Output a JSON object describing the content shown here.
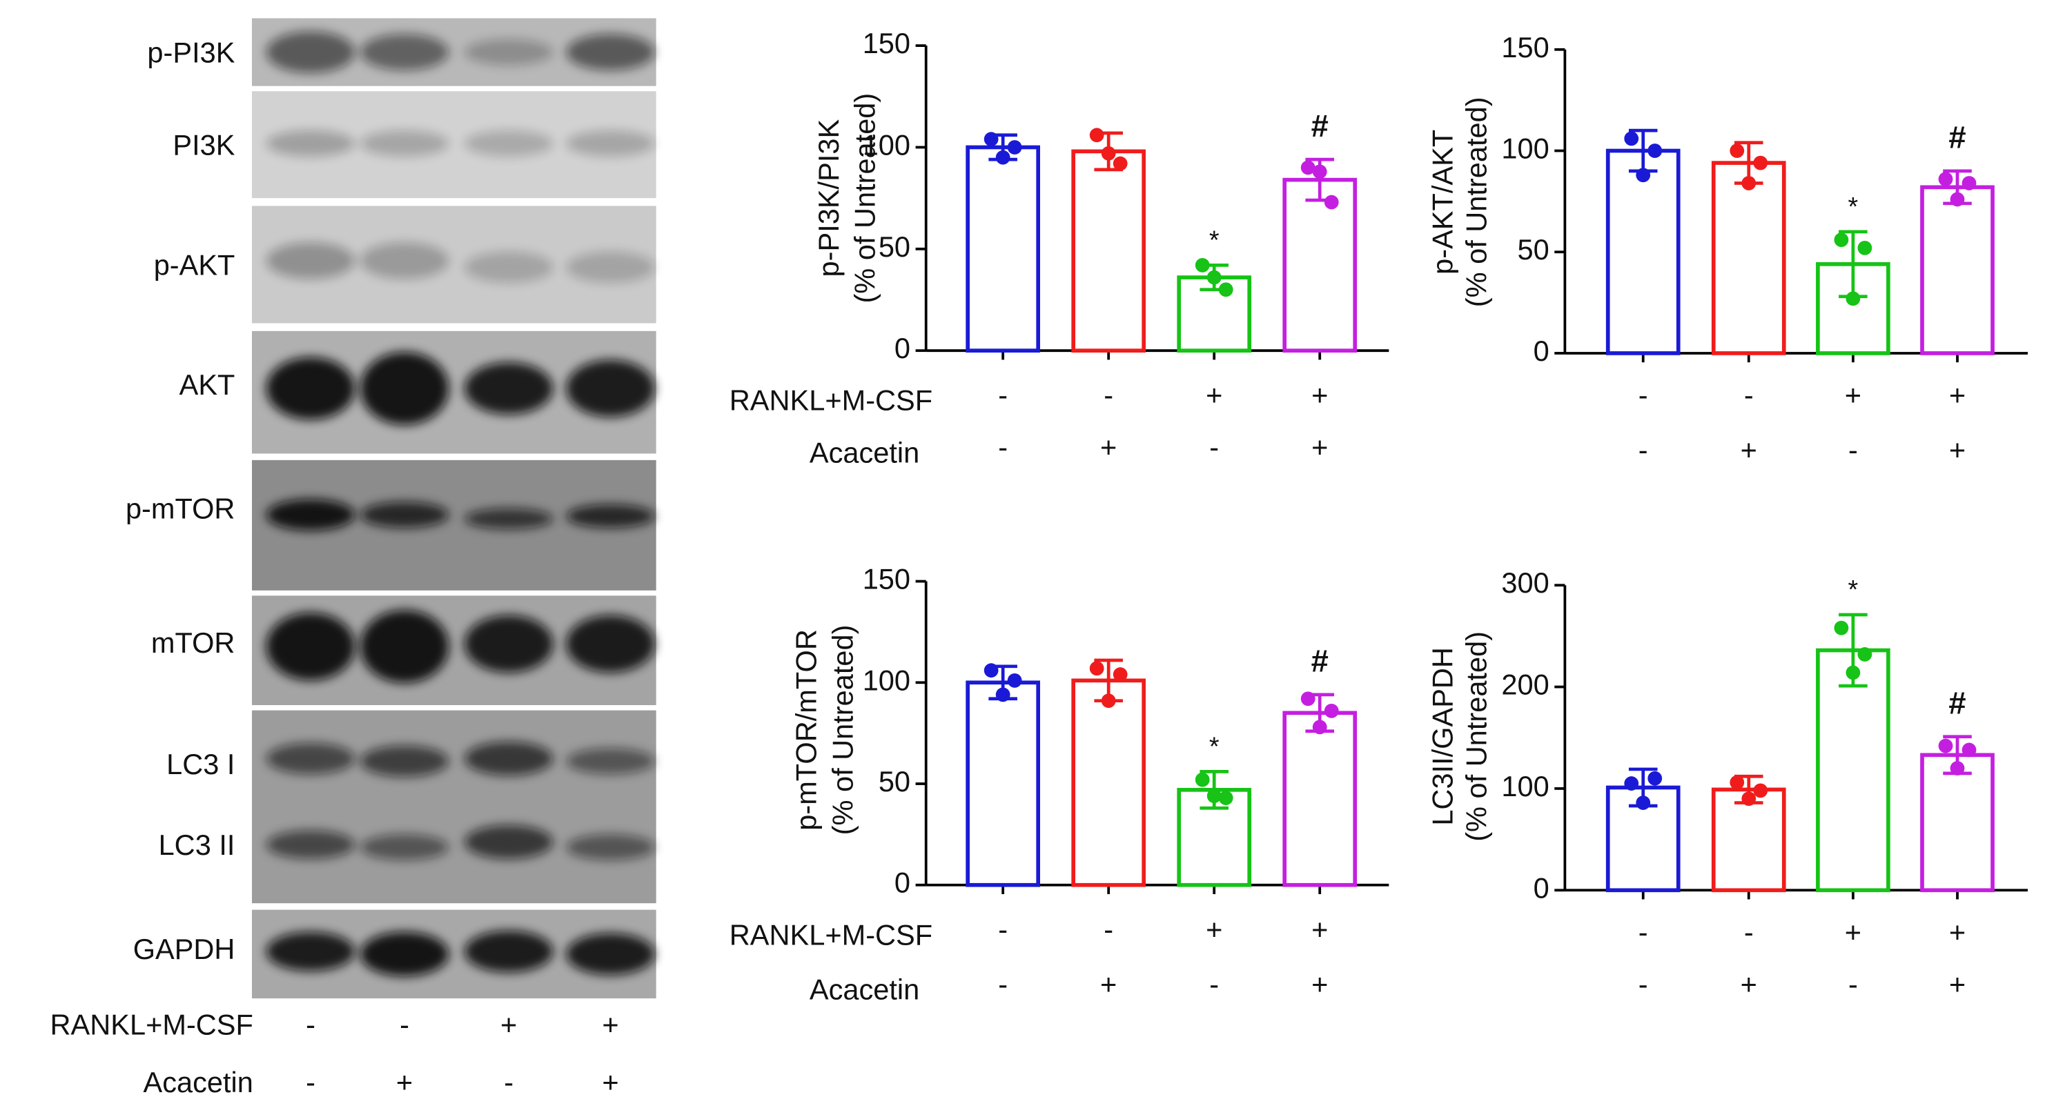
{
  "blot": {
    "labels": [
      "p-PI3K",
      "PI3K",
      "p-AKT",
      "AKT",
      "p-mTOR",
      "mTOR",
      "LC3 I",
      "LC3 II",
      "GAPDH"
    ],
    "conditions": [
      {
        "name": "RANKL+M-CSF",
        "values": [
          "-",
          "-",
          "+",
          "+"
        ]
      },
      {
        "name": "Acacetin",
        "values": [
          "-",
          "+",
          "-",
          "+"
        ]
      }
    ]
  },
  "chart_data": [
    {
      "type": "bar",
      "ylabel": [
        "p-PI3K/PI3K",
        "(% of Untreated)"
      ],
      "ylim": [
        0,
        150
      ],
      "yticks": [
        0,
        50,
        100,
        150
      ],
      "values": [
        100,
        98,
        36,
        84
      ],
      "errors": [
        6,
        9,
        6,
        10
      ],
      "points": [
        [
          104,
          100,
          95
        ],
        [
          106,
          92,
          97
        ],
        [
          42,
          30,
          36
        ],
        [
          90,
          73,
          88
        ]
      ],
      "annotations": [
        null,
        null,
        "*",
        "#"
      ],
      "colors": [
        "#1a1ad6",
        "#f01c1c",
        "#16c316",
        "#c41fe0"
      ],
      "conditions": [
        {
          "name": "RANKL+M-CSF",
          "values": [
            "-",
            "-",
            "+",
            "+"
          ]
        },
        {
          "name": "Acacetin",
          "values": [
            "-",
            "+",
            "-",
            "+"
          ]
        }
      ]
    },
    {
      "type": "bar",
      "ylabel": [
        "p-AKT/AKT",
        "(% of Untreated)"
      ],
      "ylim": [
        0,
        150
      ],
      "yticks": [
        0,
        50,
        100,
        150
      ],
      "values": [
        100,
        94,
        44,
        82
      ],
      "errors": [
        10,
        10,
        16,
        8
      ],
      "points": [
        [
          106,
          100,
          88
        ],
        [
          100,
          94,
          84
        ],
        [
          56,
          52,
          27
        ],
        [
          86,
          84,
          76
        ]
      ],
      "annotations": [
        null,
        null,
        "*",
        "#"
      ],
      "colors": [
        "#1a1ad6",
        "#f01c1c",
        "#16c316",
        "#c41fe0"
      ],
      "conditions": [
        {
          "values": [
            "-",
            "-",
            "+",
            "+"
          ]
        },
        {
          "values": [
            "-",
            "+",
            "-",
            "+"
          ]
        }
      ]
    },
    {
      "type": "bar",
      "ylabel": [
        "p-mTOR/mTOR",
        "(% of Untreated)"
      ],
      "ylim": [
        0,
        150
      ],
      "yticks": [
        0,
        50,
        100,
        150
      ],
      "values": [
        100,
        101,
        47,
        85
      ],
      "errors": [
        8,
        10,
        9,
        9
      ],
      "points": [
        [
          106,
          101,
          94
        ],
        [
          107,
          104,
          91
        ],
        [
          52,
          43,
          44
        ],
        [
          92,
          86,
          78
        ]
      ],
      "annotations": [
        null,
        null,
        "*",
        "#"
      ],
      "colors": [
        "#1a1ad6",
        "#f01c1c",
        "#16c316",
        "#c41fe0"
      ],
      "conditions": [
        {
          "name": "RANKL+M-CSF",
          "values": [
            "-",
            "-",
            "+",
            "+"
          ]
        },
        {
          "name": "Acacetin",
          "values": [
            "-",
            "+",
            "-",
            "+"
          ]
        }
      ]
    },
    {
      "type": "bar",
      "ylabel": [
        "LC3II/GAPDH",
        "(% of Untreated)"
      ],
      "ylim": [
        0,
        300
      ],
      "yticks": [
        0,
        100,
        200,
        300
      ],
      "values": [
        101,
        99,
        236,
        133
      ],
      "errors": [
        18,
        13,
        35,
        18
      ],
      "points": [
        [
          105,
          110,
          86
        ],
        [
          106,
          98,
          90
        ],
        [
          258,
          232,
          214
        ],
        [
          142,
          138,
          120
        ]
      ],
      "annotations": [
        null,
        null,
        "*",
        "#"
      ],
      "colors": [
        "#1a1ad6",
        "#f01c1c",
        "#16c316",
        "#c41fe0"
      ],
      "conditions": [
        {
          "values": [
            "-",
            "-",
            "+",
            "+"
          ]
        },
        {
          "values": [
            "-",
            "+",
            "-",
            "+"
          ]
        }
      ]
    }
  ]
}
